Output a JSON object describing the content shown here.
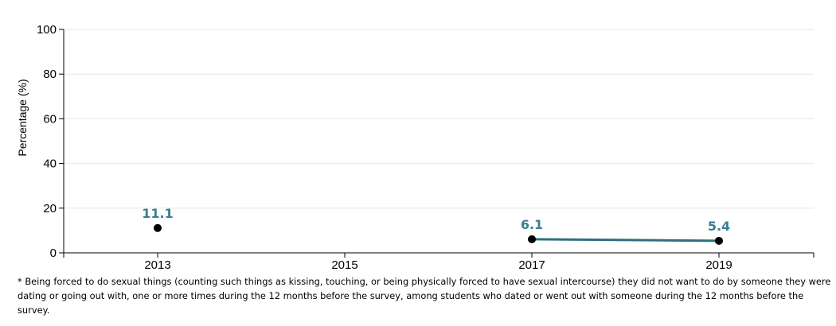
{
  "chart_data": {
    "type": "line",
    "categories": [
      "2013",
      "2015",
      "2017",
      "2019"
    ],
    "series": [
      {
        "values": [
          11.1,
          null,
          6.1,
          5.4
        ]
      }
    ],
    "data_labels": [
      "11.1",
      "",
      "6.1",
      "5.4"
    ],
    "ylabel": "Percentage (%)",
    "xlabel": "",
    "ylim": [
      0,
      100
    ],
    "yticks": [
      "0",
      "20",
      "40",
      "60",
      "80",
      "100"
    ],
    "grid": true,
    "line_color": "#2e6f80",
    "label_color": "#3b7f8e",
    "point_color": "#000000"
  },
  "footnote": "* Being forced to do sexual things (counting such things as kissing, touching, or being physically forced to have sexual intercourse) they did not want to do by someone they were dating or going out with, one or more times during the 12 months before the survey, among students who dated or went out with someone during the 12 months before the survey."
}
